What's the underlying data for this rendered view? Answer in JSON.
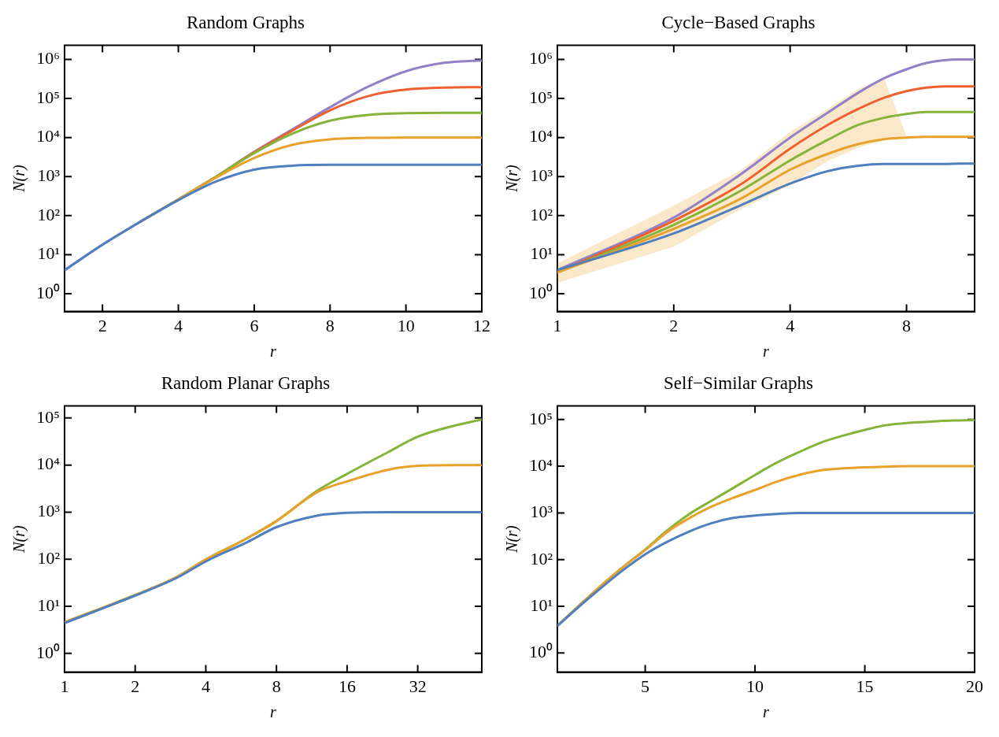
{
  "chart_data": [
    {
      "type": "line",
      "title": "Random Graphs",
      "xlabel": "r",
      "ylabel": "N(r)",
      "log": "y",
      "grid": false,
      "legend": false,
      "marker": "none",
      "xlim": [
        1,
        12
      ],
      "xticks": [
        {
          "value": 1,
          "label": null
        },
        2,
        4,
        6,
        8,
        10,
        12
      ],
      "ylim": [
        0.35,
        2300000
      ],
      "yticks": [
        {
          "value": 1,
          "label": "10⁰"
        },
        {
          "value": 10,
          "label": "10¹"
        },
        {
          "value": 100,
          "label": "10²"
        },
        {
          "value": 1000,
          "label": "10³"
        },
        {
          "value": 10000,
          "label": "10⁴"
        },
        {
          "value": 100000,
          "label": "10⁵"
        },
        {
          "value": 1000000,
          "label": "10⁶"
        }
      ],
      "x": [
        1,
        2,
        3,
        4,
        5,
        6,
        7,
        8,
        9,
        10,
        11,
        12
      ],
      "series": [
        {
          "color": "#4f7fbf",
          "values": [
            4,
            18,
            70,
            250,
            750,
            1500,
            1900,
            2000,
            2000,
            2000,
            2000,
            2000
          ]
        },
        {
          "color": "#e8a22c",
          "values": [
            null,
            null,
            70,
            260,
            950,
            3000,
            6500,
            9000,
            9800,
            10000,
            10000,
            10000
          ]
        },
        {
          "color": "#86b33a",
          "values": [
            null,
            null,
            70,
            260,
            1000,
            4000,
            12500,
            27000,
            38000,
            42000,
            43000,
            43000
          ]
        },
        {
          "color": "#ef6030",
          "values": [
            null,
            null,
            null,
            260,
            1000,
            4200,
            15000,
            50000,
            115000,
            170000,
            190000,
            195000
          ]
        },
        {
          "color": "#9281c6",
          "values": [
            4,
            18,
            70,
            260,
            1000,
            4300,
            16000,
            60000,
            200000,
            500000,
            820000,
            950000
          ]
        }
      ]
    },
    {
      "type": "line",
      "title": "Cycle−Based Graphs",
      "xlabel": "r",
      "ylabel": "N(r)",
      "log": "xy",
      "grid": false,
      "legend": false,
      "marker": "none",
      "xlim": [
        1,
        12
      ],
      "xticks": [
        1,
        2,
        4,
        8
      ],
      "ylim": [
        0.35,
        2300000
      ],
      "yticks": [
        {
          "value": 1,
          "label": "10⁰"
        },
        {
          "value": 10,
          "label": "10¹"
        },
        {
          "value": 100,
          "label": "10²"
        },
        {
          "value": 1000,
          "label": "10³"
        },
        {
          "value": 10000,
          "label": "10⁴"
        },
        {
          "value": 100000,
          "label": "10⁵"
        },
        {
          "value": 1000000,
          "label": "10⁶"
        }
      ],
      "x": [
        1,
        2,
        3,
        4,
        5,
        6,
        7,
        8,
        9,
        10,
        11,
        12
      ],
      "series": [
        {
          "color": "#4f7fbf",
          "values": [
            4,
            35,
            190,
            660,
            1380,
            1900,
            2100,
            2100,
            2100,
            2100,
            2150,
            2150
          ]
        },
        {
          "color": "#e8a22c",
          "values": [
            3.5,
            46,
            280,
            1500,
            3800,
            6800,
            9100,
            10000,
            10500,
            10500,
            10500,
            10500
          ],
          "lower": [
            1.9,
            16,
            150,
            600,
            2500,
            5500,
            8500,
            9800,
            10400,
            10500,
            10500,
            10500
          ],
          "upper": [
            6,
            180,
            1500,
            14000,
            54000,
            175000,
            330000,
            11000,
            10600,
            10500,
            10500,
            10500
          ]
        },
        {
          "color": "#86b33a",
          "values": [
            3.5,
            58,
            450,
            2600,
            8700,
            21000,
            32000,
            40000,
            45000,
            45000,
            45000,
            45000
          ]
        },
        {
          "color": "#ef6030",
          "values": [
            3.6,
            74,
            660,
            5200,
            21000,
            54000,
            105000,
            155000,
            190000,
            205000,
            205000,
            205000
          ]
        },
        {
          "color": "#9281c6",
          "values": [
            4,
            89,
            1200,
            10000,
            43000,
            140000,
            330000,
            560000,
            810000,
            960000,
            1000000,
            1000000
          ]
        }
      ]
    },
    {
      "type": "line",
      "title": "Random Planar Graphs",
      "xlabel": "r",
      "ylabel": "N(r)",
      "log": "xy",
      "grid": false,
      "legend": false,
      "marker": "none",
      "xlim": [
        1,
        60
      ],
      "xticks": [
        1,
        2,
        4,
        8,
        16,
        32
      ],
      "ylim": [
        0.4,
        180000
      ],
      "yticks": [
        {
          "value": 1,
          "label": "10⁰"
        },
        {
          "value": 10,
          "label": "10¹"
        },
        {
          "value": 100,
          "label": "10²"
        },
        {
          "value": 1000,
          "label": "10³"
        },
        {
          "value": 10000,
          "label": "10⁴"
        },
        {
          "value": 100000,
          "label": "10⁵"
        }
      ],
      "x": [
        1,
        2,
        3,
        4,
        6,
        8,
        12,
        16,
        24,
        32,
        45,
        60
      ],
      "series": [
        {
          "color": "#4f7fbf",
          "values": [
            4.4,
            17,
            40,
            90,
            230,
            480,
            850,
            970,
            1000,
            1000,
            1000,
            1000
          ]
        },
        {
          "color": "#e8a22c",
          "values": [
            4.6,
            17.5,
            42,
            100,
            280,
            650,
            2700,
            4500,
            8000,
            9700,
            10000,
            10000
          ]
        },
        {
          "color": "#86b33a",
          "values": [
            4.5,
            17,
            41,
            95,
            280,
            650,
            2900,
            6500,
            19000,
            40000,
            67000,
            93000
          ]
        }
      ]
    },
    {
      "type": "line",
      "title": "Self−Similar Graphs",
      "xlabel": "r",
      "ylabel": "N(r)",
      "log": "y",
      "grid": false,
      "legend": false,
      "marker": "none",
      "xlim": [
        1,
        20
      ],
      "xticks": [
        5,
        10,
        15,
        20
      ],
      "ylim": [
        0.39,
        195000
      ],
      "yticks": [
        {
          "value": 1,
          "label": "10⁰"
        },
        {
          "value": 10,
          "label": "10¹"
        },
        {
          "value": 100,
          "label": "10²"
        },
        {
          "value": 1000,
          "label": "10³"
        },
        {
          "value": 10000,
          "label": "10⁴"
        },
        {
          "value": 100000,
          "label": "10⁵"
        }
      ],
      "x": [
        1,
        2,
        3,
        4,
        5,
        6,
        7,
        8,
        9,
        10,
        11,
        12,
        13,
        14,
        15,
        16,
        17,
        18,
        19,
        20
      ],
      "series": [
        {
          "color": "#4f7fbf",
          "values": [
            3.8,
            10,
            25,
            60,
            130,
            240,
            400,
            600,
            780,
            880,
            950,
            1000,
            1000,
            1000,
            1000,
            1000,
            1000,
            1000,
            1000,
            1000
          ]
        },
        {
          "color": "#e8a22c",
          "values": [
            3.8,
            10.5,
            28,
            70,
            160,
            390,
            770,
            1350,
            2100,
            3100,
            4700,
            6500,
            8200,
            9000,
            9500,
            9800,
            10000,
            10000,
            10000,
            10000
          ]
        },
        {
          "color": "#86b33a",
          "values": [
            3.8,
            10.5,
            28,
            70,
            165,
            420,
            940,
            1800,
            3400,
            6500,
            12000,
            20000,
            32000,
            45000,
            60000,
            76000,
            85000,
            90000,
            95000,
            97000
          ]
        }
      ]
    }
  ]
}
